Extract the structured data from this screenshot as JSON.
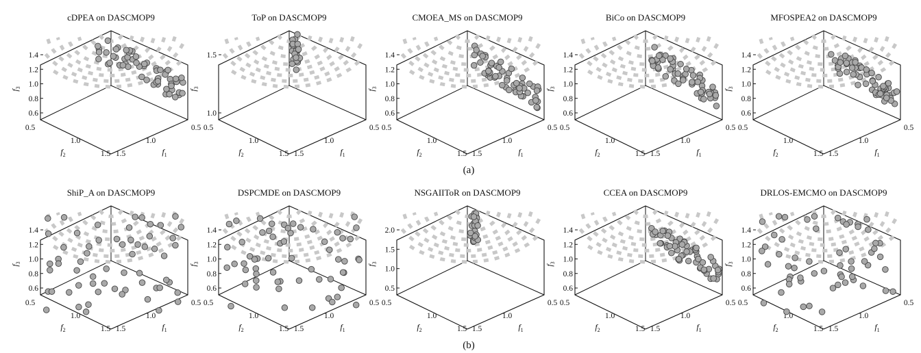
{
  "figure": {
    "row_labels": [
      "(a)",
      "(b)"
    ],
    "colors": {
      "point_fill": "#a9a9a9",
      "point_stroke": "#444444",
      "reference_front": "#c8c8c8",
      "box": "#111111"
    }
  },
  "axis_labels": {
    "f1": "f",
    "f1_sub": "1",
    "f2": "f",
    "f2_sub": "2",
    "f3": "f",
    "f3_sub": "3"
  },
  "chart_data": [
    {
      "type": "scatter",
      "title": "cDPEA on DASCMOP9",
      "zticks": [
        "0.6",
        "0.8",
        "1.0",
        "1.2",
        "1.4"
      ],
      "zlim": [
        0.5,
        1.5
      ],
      "side_ticks": [
        "0.5",
        "1.0",
        "1.5"
      ],
      "points_spread": "upper-cap and right wedge",
      "seed": 1
    },
    {
      "type": "scatter",
      "title": "ToP on DASCMOP9",
      "zticks": [
        "1.0",
        "1.5"
      ],
      "zlim": [
        0.5,
        1.5
      ],
      "side_ticks": [
        "0.5",
        "1.0",
        "1.5"
      ],
      "points_spread": "narrow vertical cluster near top",
      "seed": 2
    },
    {
      "type": "scatter",
      "title": "CMOEA_MS on DASCMOP9",
      "zticks": [
        "0.6",
        "0.8",
        "1.0",
        "1.2",
        "1.4"
      ],
      "zlim": [
        0.5,
        1.5
      ],
      "side_ticks": [
        "0.5",
        "1.0",
        "1.5"
      ],
      "points_spread": "right wedge",
      "seed": 3
    },
    {
      "type": "scatter",
      "title": "BiCo on DASCMOP9",
      "zticks": [
        "0.6",
        "0.8",
        "1.0",
        "1.2",
        "1.4"
      ],
      "zlim": [
        0.5,
        1.5
      ],
      "side_ticks": [
        "0.5",
        "1.0",
        "1.5"
      ],
      "points_spread": "right wedge",
      "seed": 4
    },
    {
      "type": "scatter",
      "title": "MFOSPEA2 on DASCMOP9",
      "zticks": [
        "0.6",
        "0.8",
        "1.0",
        "1.2",
        "1.4"
      ],
      "zlim": [
        0.5,
        1.5
      ],
      "side_ticks": [
        "0.5",
        "1.0",
        "1.5"
      ],
      "points_spread": "right wedge",
      "seed": 5
    },
    {
      "type": "scatter",
      "title": "ShiP_A on DASCMOP9",
      "zticks": [
        "0.6",
        "0.8",
        "1.0",
        "1.2",
        "1.4"
      ],
      "zlim": [
        0.5,
        1.5
      ],
      "side_ticks": [
        "0.5",
        "1.0",
        "1.5"
      ],
      "points_spread": "full sphere sparse",
      "seed": 6
    },
    {
      "type": "scatter",
      "title": "DSPCMDE on DASCMOP9",
      "zticks": [
        "0.6",
        "0.8",
        "1.0",
        "1.2",
        "1.4"
      ],
      "zlim": [
        0.5,
        1.5
      ],
      "side_ticks": [
        "0.5",
        "1.0",
        "1.5"
      ],
      "points_spread": "full sphere sparse",
      "seed": 7
    },
    {
      "type": "scatter",
      "title": "NSGAIIToR on DASCMOP9",
      "zticks": [
        "0.5",
        "1.0",
        "1.5",
        "2.0"
      ],
      "zlim": [
        0.5,
        2.0
      ],
      "side_ticks": [
        "0.5",
        "1.0",
        "1.5"
      ],
      "points_spread": "narrow cluster",
      "seed": 8
    },
    {
      "type": "scatter",
      "title": "CCEA on DASCMOP9",
      "zticks": [
        "0.6",
        "0.8",
        "1.0",
        "1.2",
        "1.4"
      ],
      "zlim": [
        0.5,
        1.5
      ],
      "side_ticks": [
        "0.5",
        "1.0",
        "1.5"
      ],
      "points_spread": "right wedge",
      "seed": 9
    },
    {
      "type": "scatter",
      "title": "DRLOS-EMCMO on DASCMOP9",
      "zticks": [
        "0.6",
        "0.8",
        "1.0",
        "1.2",
        "1.4"
      ],
      "zlim": [
        0.5,
        1.5
      ],
      "side_ticks": [
        "0.5",
        "1.0",
        "1.5"
      ],
      "points_spread": "full sphere sparse",
      "seed": 10
    }
  ]
}
